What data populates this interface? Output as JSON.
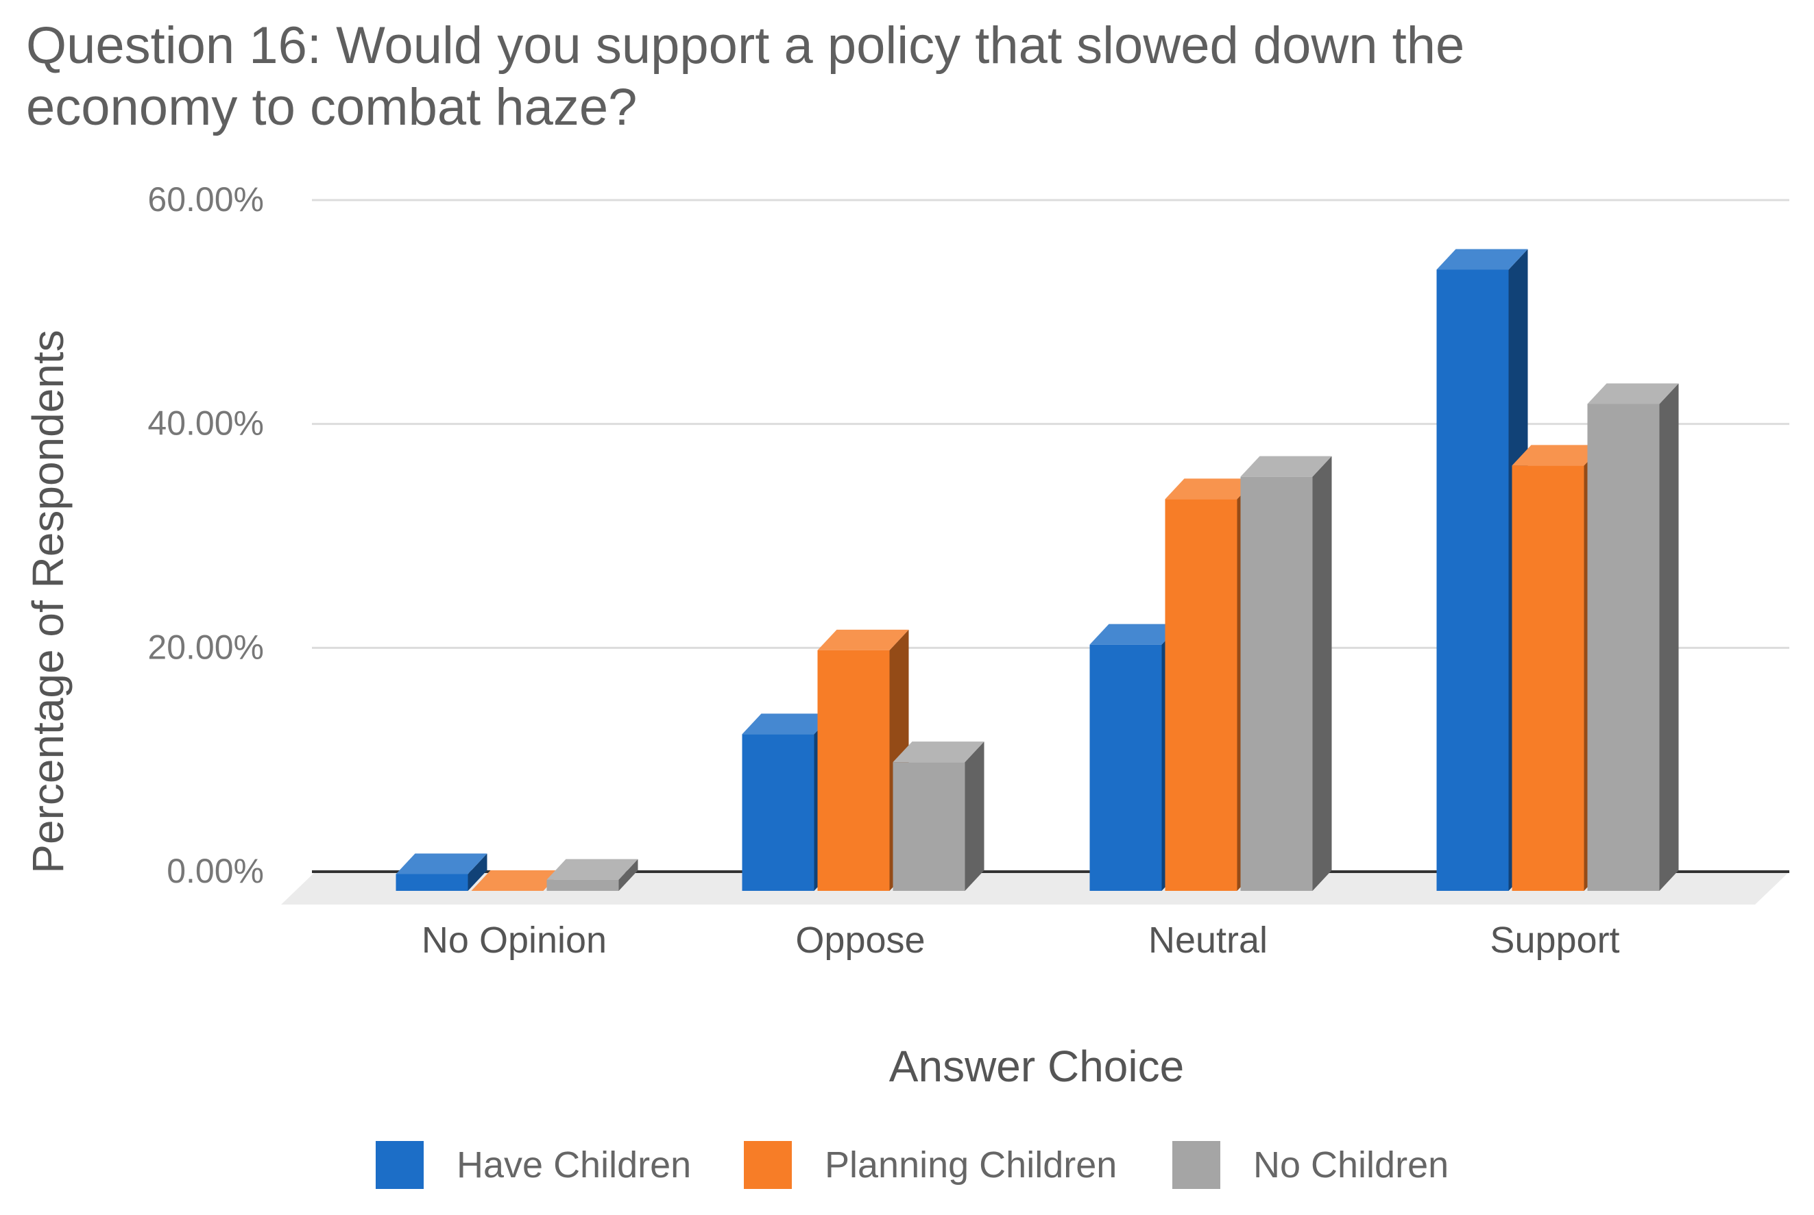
{
  "chart_data": {
    "type": "bar",
    "title_lines": [
      "Question 16: Would you support a policy that slowed down the",
      "economy to combat haze?"
    ],
    "xlabel": "Answer Choice",
    "ylabel": "Percentage of Respondents",
    "ylim": [
      0,
      60
    ],
    "yticks": [
      "0.00%",
      "20.00%",
      "40.00%",
      "60.00%"
    ],
    "categories": [
      "No Opinion",
      "Oppose",
      "Neutral",
      "Support"
    ],
    "series": [
      {
        "name": "Have Children",
        "color": "#1c6ec7",
        "values": [
          1.5,
          14.0,
          22.0,
          55.5
        ]
      },
      {
        "name": "Planning Children",
        "color": "#f77d27",
        "values": [
          0.0,
          21.5,
          35.0,
          38.0
        ]
      },
      {
        "name": "No Children",
        "color": "#a5a5a5",
        "values": [
          1.0,
          11.5,
          37.0,
          43.5
        ]
      }
    ],
    "legend_position": "bottom",
    "grid": true,
    "style": "3d-column"
  }
}
